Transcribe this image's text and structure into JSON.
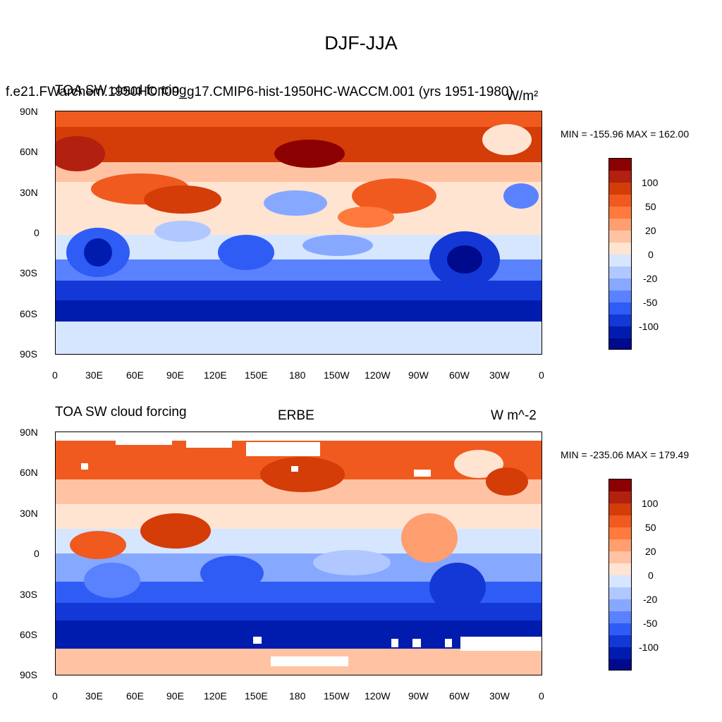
{
  "main_title": "DJF-JJA",
  "panels": [
    {
      "left_title": "f.e21.FWarchem.1950HC.f09_g17.CMIP6-hist-1950HC-WACCM.001 (yrs 1951-1980)",
      "left_title_overlap": "TOA SW cloud forcing",
      "center_title": "",
      "units": "W/m²",
      "minmax": "MIN = -155.96 MAX = 162.00"
    },
    {
      "left_title": "TOA SW cloud forcing",
      "left_title_overlap": "",
      "center_title": "ERBE",
      "units": "W m^-2",
      "minmax": "MIN = -235.06 MAX = 179.49"
    }
  ],
  "lat_ticks": [
    "90N",
    "60N",
    "30N",
    "0",
    "30S",
    "60S",
    "90S"
  ],
  "lon_ticks": [
    "0",
    "30E",
    "60E",
    "90E",
    "120E",
    "150E",
    "180",
    "150W",
    "120W",
    "90W",
    "60W",
    "30W",
    "0"
  ],
  "colorbar": {
    "colors": [
      "#8b0000",
      "#b22010",
      "#d43c08",
      "#f05a1e",
      "#ff7a3c",
      "#ff9e6e",
      "#ffc3a3",
      "#ffe4d2",
      "#d6e6ff",
      "#b0c8ff",
      "#87a8ff",
      "#5a82ff",
      "#2f5cf5",
      "#1438d6",
      "#001cae",
      "#000a8c"
    ],
    "labels": [
      "100",
      "50",
      "20",
      "0",
      "-20",
      "-50",
      "-100"
    ]
  }
}
